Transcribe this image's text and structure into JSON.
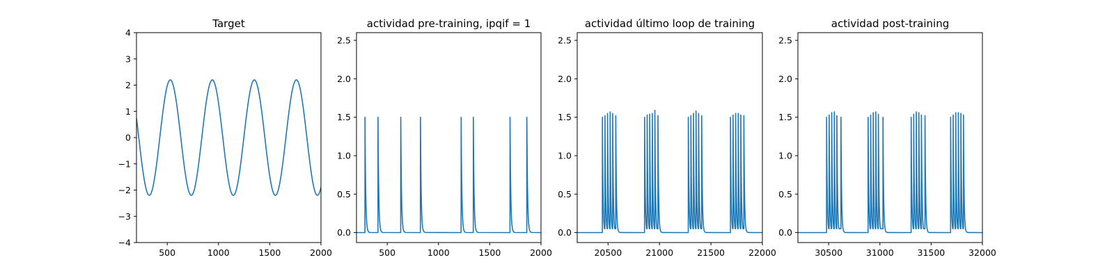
{
  "chart_data": [
    {
      "type": "line",
      "title": "Target",
      "xlim": [
        200,
        2000
      ],
      "ylim": [
        -4,
        4
      ],
      "xticks": [
        500,
        1000,
        1500,
        2000
      ],
      "yticks": [
        -4,
        -3,
        -2,
        -1,
        0,
        1,
        2,
        3,
        4
      ],
      "series": [
        {
          "kind": "sine",
          "amplitude": 2.2,
          "period": 410,
          "peak_x": [
            530,
            935,
            1335,
            1740
          ],
          "x_start": 200,
          "y_start": 1.0,
          "x_end": 2000,
          "y_end": -1.1
        }
      ]
    },
    {
      "type": "line",
      "title": "actividad pre-training, ipqif = 1",
      "xlim": [
        200,
        2000
      ],
      "ylim": [
        -0.13,
        2.6
      ],
      "xticks": [
        500,
        1000,
        1500,
        2000
      ],
      "yticks": [
        0.0,
        0.5,
        1.0,
        1.5,
        2.0,
        2.5
      ],
      "series": [
        {
          "kind": "spikes",
          "baseline": 0.0,
          "spike_x": [
            283,
            410,
            632,
            824,
            1221,
            1340,
            1698,
            1862
          ],
          "spike_height": [
            1.5,
            1.5,
            1.5,
            1.5,
            1.5,
            1.5,
            1.5,
            1.5
          ]
        }
      ]
    },
    {
      "type": "line",
      "title": "actividad último loop de training",
      "xlim": [
        20200,
        22000
      ],
      "ylim": [
        -0.13,
        2.6
      ],
      "xticks": [
        20500,
        21000,
        21500,
        22000
      ],
      "yticks": [
        0.0,
        0.5,
        1.0,
        1.5,
        2.0,
        2.5
      ],
      "series": [
        {
          "kind": "bursts",
          "baseline": 0.0,
          "trough": 0.05,
          "spike_x": [
            20445,
            20470,
            20495,
            20520,
            20545,
            20575,
            20855,
            20880,
            20905,
            20930,
            20955,
            20985,
            21280,
            21305,
            21330,
            21355,
            21380,
            21410,
            21690,
            21715,
            21740,
            21765,
            21790,
            21820
          ],
          "spike_height": [
            1.5,
            1.52,
            1.55,
            1.57,
            1.55,
            1.52,
            1.5,
            1.53,
            1.54,
            1.55,
            1.59,
            1.52,
            1.5,
            1.52,
            1.55,
            1.58,
            1.55,
            1.52,
            1.5,
            1.53,
            1.55,
            1.55,
            1.53,
            1.52
          ]
        }
      ]
    },
    {
      "type": "line",
      "title": "actividad post-training",
      "xlim": [
        30200,
        32000
      ],
      "ylim": [
        -0.13,
        2.6
      ],
      "xticks": [
        30500,
        31000,
        31500,
        32000
      ],
      "yticks": [
        0.0,
        0.5,
        1.0,
        1.5,
        2.0,
        2.5
      ],
      "series": [
        {
          "kind": "bursts",
          "baseline": 0.0,
          "trough": 0.05,
          "spike_x": [
            30480,
            30505,
            30530,
            30555,
            30580,
            30620,
            30885,
            30910,
            30935,
            30960,
            30985,
            31030,
            31305,
            31330,
            31355,
            31380,
            31405,
            31440,
            31690,
            31715,
            31740,
            31765,
            31790,
            31815
          ],
          "spike_height": [
            1.5,
            1.53,
            1.56,
            1.57,
            1.52,
            1.5,
            1.5,
            1.53,
            1.56,
            1.57,
            1.54,
            1.5,
            1.5,
            1.54,
            1.57,
            1.56,
            1.53,
            1.52,
            1.5,
            1.53,
            1.56,
            1.56,
            1.55,
            1.53
          ]
        }
      ]
    }
  ],
  "colors": {
    "line": "#1f77b4",
    "axes": "#000000",
    "background": "#ffffff"
  }
}
